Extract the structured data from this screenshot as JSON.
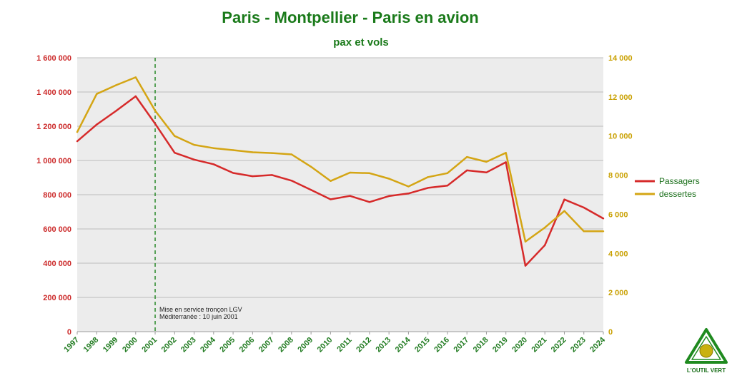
{
  "chart_data": {
    "type": "line",
    "title": "Paris - Montpellier - Paris en avion",
    "subtitle": "pax et vols",
    "categories": [
      "1997",
      "1998",
      "1999",
      "2000",
      "2001",
      "2002",
      "2003",
      "2004",
      "2005",
      "2006",
      "2007",
      "2008",
      "2009",
      "2010",
      "2011",
      "2012",
      "2013",
      "2014",
      "2015",
      "2016",
      "2017",
      "2018",
      "2019",
      "2020",
      "2021",
      "2022",
      "2023",
      "2024"
    ],
    "series": [
      {
        "name": "Passagers",
        "axis": "left",
        "color": "#d62a2a",
        "values": [
          1112000,
          1210000,
          1290000,
          1375000,
          1215000,
          1045000,
          1005000,
          978000,
          927000,
          908000,
          915000,
          882000,
          828000,
          773000,
          793000,
          757000,
          792000,
          807000,
          840000,
          853000,
          942000,
          930000,
          990000,
          385000,
          505000,
          772000,
          725000,
          661000
        ]
      },
      {
        "name": "dessertes",
        "axis": "right",
        "color": "#d4a514",
        "values": [
          10200,
          12150,
          12600,
          13000,
          11300,
          10000,
          9550,
          9380,
          9280,
          9170,
          9130,
          9060,
          8430,
          7700,
          8130,
          8100,
          7820,
          7420,
          7900,
          8100,
          8930,
          8680,
          9140,
          4600,
          5320,
          6170,
          5130,
          5130
        ]
      }
    ],
    "y_left": {
      "min": 0,
      "max": 1600000,
      "step": 200000,
      "ticks": [
        "0",
        "200 000",
        "400 000",
        "600 000",
        "800 000",
        "1 000 000",
        "1 200 000",
        "1 400 000",
        "1 600 000"
      ]
    },
    "y_right": {
      "min": 0,
      "max": 14000,
      "step": 2000,
      "ticks": [
        "0",
        "2 000",
        "4 000",
        "6 000",
        "8 000",
        "10 000",
        "12 000",
        "14 000"
      ]
    },
    "grid": true,
    "legend": "right",
    "annotation": {
      "category": "2001",
      "lines": [
        "Mise en service tronçon LGV",
        "Méditerranée : 10 juin 2001"
      ],
      "color": "#2a8a2a"
    }
  },
  "logo": {
    "text": "L'OUTIL VERT"
  }
}
